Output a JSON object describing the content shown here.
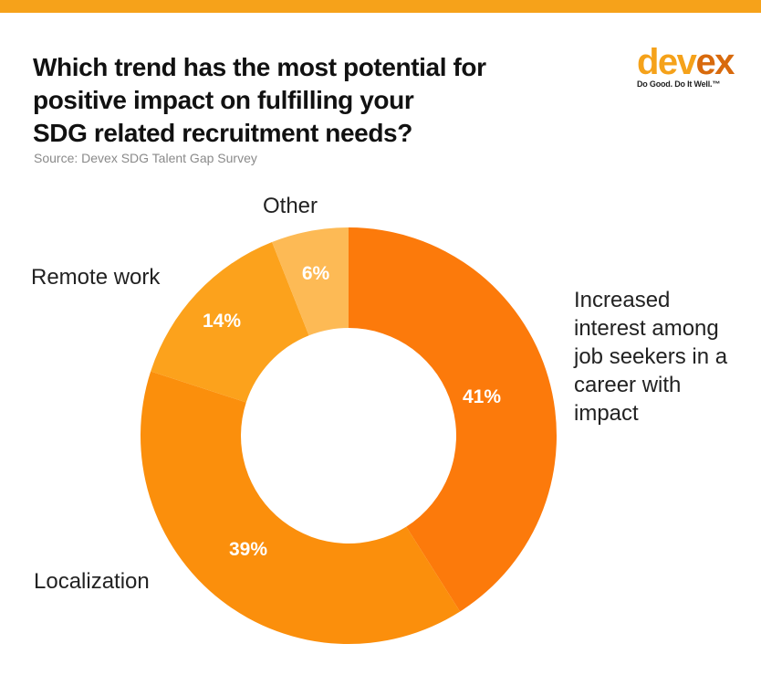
{
  "header": {
    "title_lines": [
      "Which trend has the most potential for",
      "positive impact on fulfilling your",
      "SDG related recruitment needs?"
    ],
    "source": "Source: Devex SDG Talent Gap Survey"
  },
  "logo": {
    "word_main": "dev",
    "word_accent": "ex",
    "tagline": "Do Good. Do It Well.™",
    "colors": {
      "main": "#f5a21a",
      "accent": "#d86a0d"
    }
  },
  "colors": {
    "top_bar": "#f6a21a"
  },
  "chart_data": {
    "type": "pie",
    "donut": true,
    "title": "Which trend has the most potential for positive impact on fulfilling your SDG related recruitment needs?",
    "slices": [
      {
        "label": "Increased interest among job seekers in a career with impact",
        "label_lines": [
          "Increased",
          "interest among",
          "job seekers in a",
          "career with",
          "impact"
        ],
        "value": 41,
        "display": "41%",
        "color": "#fc7a0b"
      },
      {
        "label": "Localization",
        "label_lines": [
          "Localization"
        ],
        "value": 39,
        "display": "39%",
        "color": "#fb8f0c"
      },
      {
        "label": "Remote work",
        "label_lines": [
          "Remote work"
        ],
        "value": 14,
        "display": "14%",
        "color": "#fca21c"
      },
      {
        "label": "Other",
        "label_lines": [
          "Other"
        ],
        "value": 6,
        "display": "6%",
        "color": "#fdba55"
      }
    ]
  }
}
